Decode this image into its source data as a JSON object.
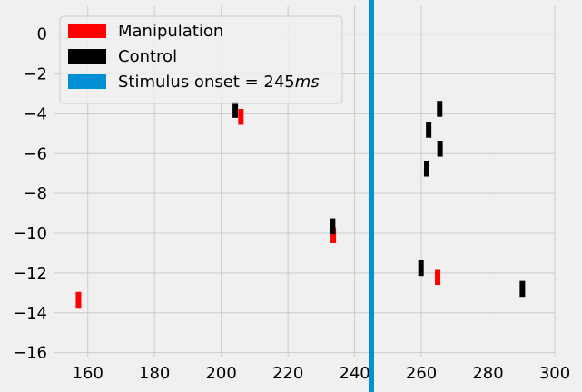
{
  "chart_data": {
    "type": "event-raster",
    "title": "",
    "xlabel": "",
    "ylabel": "",
    "xlim": [
      150,
      300
    ],
    "ylim": [
      -16.2,
      1.4
    ],
    "xticks": [
      160,
      180,
      200,
      220,
      240,
      260,
      280,
      300
    ],
    "yticks": [
      0,
      -2,
      -4,
      -6,
      -8,
      -10,
      -12,
      -14,
      -16
    ],
    "grid": true,
    "legend_position": "top-left",
    "vline": {
      "x": 245,
      "label": "Stimulus onset = 245",
      "label_italic_suffix": "ms",
      "color": "#008fd5"
    },
    "series": [
      {
        "name": "Manipulation",
        "color": "#ff0000",
        "events": [
          {
            "x": 157.2,
            "y": -13.35
          },
          {
            "x": 205.9,
            "y": -4.15
          },
          {
            "x": 233.6,
            "y": -10.1
          },
          {
            "x": 264.9,
            "y": -12.2
          }
        ]
      },
      {
        "name": "Control",
        "color": "#000000",
        "events": [
          {
            "x": 204.2,
            "y": -3.8
          },
          {
            "x": 233.4,
            "y": -9.65
          },
          {
            "x": 259.9,
            "y": -11.75
          },
          {
            "x": 261.6,
            "y": -6.75
          },
          {
            "x": 262.2,
            "y": -4.8
          },
          {
            "x": 265.5,
            "y": -3.75
          },
          {
            "x": 265.6,
            "y": -5.75
          },
          {
            "x": 290.3,
            "y": -12.8
          }
        ]
      }
    ]
  }
}
